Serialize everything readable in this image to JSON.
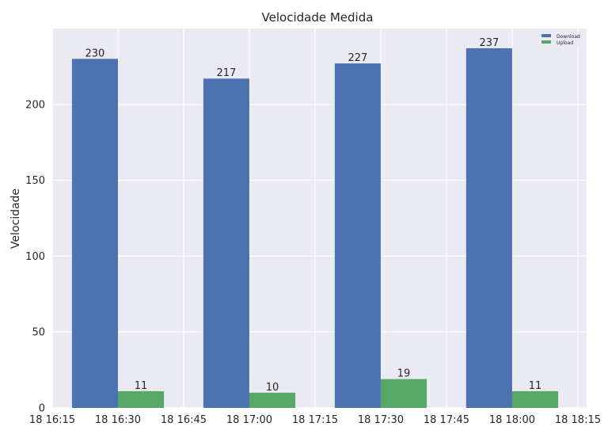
{
  "chart_data": {
    "type": "bar",
    "title": "Velocidade Medida",
    "xlabel": "",
    "ylabel": "Velocidade",
    "ylim": [
      0,
      250
    ],
    "yticks": [
      0,
      50,
      100,
      150,
      200
    ],
    "xlim": [
      "18 16:15",
      "18 18:17"
    ],
    "xticks": [
      "18 16:15",
      "18 16:30",
      "18 16:45",
      "18 17:00",
      "18 17:15",
      "18 17:30",
      "18 17:45",
      "18 18:00",
      "18 18:15"
    ],
    "grid": true,
    "legend_position": "top-right",
    "series": [
      {
        "name": "Download",
        "color": "#4c72b0",
        "points": [
          {
            "time": "18 16:30",
            "value": 230,
            "label": "230"
          },
          {
            "time": "18 17:00",
            "value": 217,
            "label": "217"
          },
          {
            "time": "18 17:30",
            "value": 227,
            "label": "227"
          },
          {
            "time": "18 18:00",
            "value": 237,
            "label": "237"
          }
        ]
      },
      {
        "name": "Upload",
        "color": "#55a868",
        "points": [
          {
            "time": "18 16:30",
            "value": 11,
            "label": "11"
          },
          {
            "time": "18 17:00",
            "value": 10,
            "label": "10"
          },
          {
            "time": "18 17:30",
            "value": 19,
            "label": "19"
          },
          {
            "time": "18 18:00",
            "value": 11,
            "label": "11"
          }
        ]
      }
    ]
  }
}
